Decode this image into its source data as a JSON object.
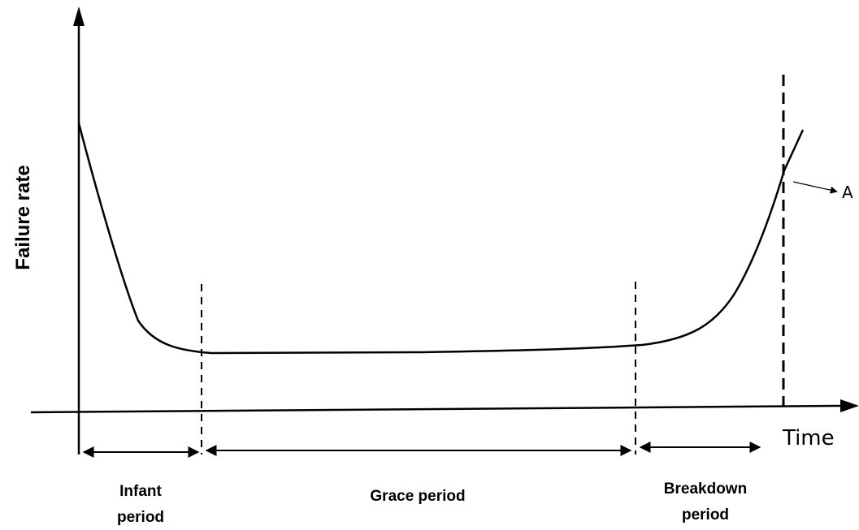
{
  "diagram": {
    "y_axis_label": "Failure rate",
    "x_axis_label": "Time",
    "marker_label": "A",
    "periods": {
      "infant": [
        "Infant",
        "period"
      ],
      "grace": "Grace period",
      "breakdown": [
        "Breakdown",
        "period"
      ]
    }
  },
  "colors": {
    "ink": "#000000",
    "background": "#ffffff"
  }
}
